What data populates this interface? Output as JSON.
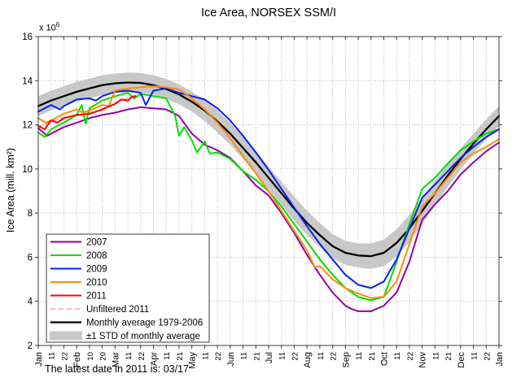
{
  "title": "Ice Area, NORSEX SSM/I",
  "footer_note": "The latest date in 2011 is: 03/17",
  "y_axis": {
    "label": "Ice Area (mill. km²)",
    "exp_base": "x 10",
    "exp_power": "6",
    "min": 2,
    "max": 16,
    "ticks": [
      16,
      14,
      12,
      10,
      8,
      6,
      4,
      2
    ]
  },
  "x_axis": {
    "tick_labels": [
      "Jan",
      "11",
      "22",
      "Feb",
      "10",
      "20",
      "Mar",
      "11",
      "22",
      "Apr",
      "11",
      "21",
      "May",
      "11",
      "22",
      "Jun",
      "11",
      "21",
      "Jul",
      "11",
      "22",
      "Aug",
      "11",
      "22",
      "Sep",
      "11",
      "21",
      "Oct",
      "11",
      "22",
      "Nov",
      "11",
      "21",
      "Dec",
      "11",
      "22",
      "Jan"
    ]
  },
  "legend": {
    "position": "bottom-left",
    "entries": [
      {
        "label": "2007",
        "ref": "2007"
      },
      {
        "label": "2008",
        "ref": "2008"
      },
      {
        "label": "2009",
        "ref": "2009"
      },
      {
        "label": "2010",
        "ref": "2010"
      },
      {
        "label": "2011",
        "ref": "2011"
      },
      {
        "label": "Unfiltered 2011",
        "ref": "Unfiltered 2011"
      },
      {
        "label": "Monthly average 1979-2006",
        "ref": "Monthly average 1979-2006"
      },
      {
        "label": "±1 STD of monthly average",
        "ref": "band"
      }
    ]
  },
  "chart_data": {
    "type": "line",
    "title": "Ice Area, NORSEX SSM/I",
    "xlabel": "",
    "ylabel": "Ice Area (mill. km²)",
    "ylim": [
      2,
      16
    ],
    "grid": true,
    "x_units": "tick index, 3 ticks per month, 0 = Jan 1, 36 = next Jan 1",
    "x_tick_labels": [
      "Jan",
      "11",
      "22",
      "Feb",
      "10",
      "20",
      "Mar",
      "11",
      "22",
      "Apr",
      "11",
      "21",
      "May",
      "11",
      "22",
      "Jun",
      "11",
      "21",
      "Jul",
      "11",
      "22",
      "Aug",
      "11",
      "22",
      "Sep",
      "11",
      "21",
      "Oct",
      "11",
      "22",
      "Nov",
      "11",
      "21",
      "Dec",
      "11",
      "22",
      "Jan"
    ],
    "band": {
      "label": "±1 STD of monthly average",
      "color": "#c8c8c8",
      "center_series": "Monthly average 1979-2006",
      "std": [
        0.45,
        0.45,
        0.45,
        0.45,
        0.45,
        0.45,
        0.45,
        0.45,
        0.45,
        0.45,
        0.45,
        0.45,
        0.45,
        0.48,
        0.5,
        0.5,
        0.5,
        0.5,
        0.5,
        0.52,
        0.55,
        0.55,
        0.55,
        0.55,
        0.55,
        0.55,
        0.58,
        0.6,
        0.62,
        0.62,
        0.6,
        0.55,
        0.5,
        0.48,
        0.45,
        0.45,
        0.45
      ]
    },
    "series": [
      {
        "label": "Monthly average 1979-2006",
        "color": "#000000",
        "width": 2.3,
        "y": [
          12.85,
          13.1,
          13.3,
          13.5,
          13.65,
          13.8,
          13.88,
          13.92,
          13.9,
          13.8,
          13.62,
          13.38,
          13.05,
          12.65,
          12.15,
          11.6,
          10.95,
          10.3,
          9.6,
          8.9,
          8.2,
          7.55,
          7.0,
          6.5,
          6.2,
          6.08,
          6.05,
          6.2,
          6.65,
          7.3,
          8.1,
          8.9,
          9.7,
          10.45,
          11.15,
          11.8,
          12.4
        ]
      },
      {
        "label": "Unfiltered 2011",
        "color": "#ff9e9e",
        "width": 1.4,
        "dash": "6 4",
        "x": [
          0,
          1,
          2,
          3,
          4,
          5,
          6,
          7,
          7.6
        ],
        "y": [
          11.9,
          12.15,
          12.35,
          12.4,
          12.55,
          12.65,
          13.0,
          13.2,
          13.35
        ]
      },
      {
        "label": "2007",
        "color": "#9400a6",
        "width": 2,
        "x": [
          0,
          0.7,
          1,
          2,
          3,
          4,
          5,
          6,
          7,
          8,
          9,
          10,
          11,
          12,
          13,
          14,
          15,
          16,
          17,
          18,
          19,
          20,
          21,
          22,
          23,
          24,
          24.5,
          25,
          26,
          27,
          28,
          29,
          30,
          31,
          32,
          33,
          34,
          35,
          36
        ],
        "y": [
          11.85,
          11.5,
          11.6,
          11.9,
          12.1,
          12.3,
          12.45,
          12.55,
          12.7,
          12.8,
          12.75,
          12.7,
          12.4,
          11.6,
          11.1,
          10.85,
          10.5,
          9.9,
          9.25,
          8.8,
          8.0,
          7.1,
          6.1,
          5.2,
          4.4,
          3.8,
          3.65,
          3.55,
          3.55,
          3.8,
          4.4,
          5.8,
          7.7,
          8.4,
          9.0,
          9.75,
          10.3,
          10.8,
          11.2
        ]
      },
      {
        "label": "2008",
        "color": "#00dd00",
        "width": 2,
        "x": [
          0,
          0.5,
          1,
          2,
          3,
          3.4,
          3.7,
          4,
          5,
          6,
          7,
          7.5,
          8,
          9,
          10,
          10.7,
          11,
          11.4,
          12,
          12.4,
          13,
          13.4,
          14,
          15,
          16,
          17,
          18,
          19,
          20,
          21,
          22,
          23,
          24,
          25,
          26,
          27,
          28,
          29,
          30,
          31,
          32,
          33,
          34,
          35,
          36
        ],
        "y": [
          11.65,
          11.45,
          11.8,
          12.1,
          12.45,
          12.9,
          12.05,
          12.75,
          13.1,
          13.3,
          13.45,
          13.2,
          13.4,
          13.3,
          13.2,
          12.4,
          11.5,
          11.9,
          11.3,
          10.75,
          11.25,
          10.7,
          10.75,
          10.45,
          9.9,
          9.5,
          9.0,
          8.3,
          7.5,
          6.7,
          5.9,
          5.2,
          4.6,
          4.2,
          4.05,
          4.2,
          5.8,
          7.5,
          9.1,
          9.6,
          10.25,
          10.85,
          11.25,
          11.6,
          11.8
        ]
      },
      {
        "label": "2009",
        "color": "#0022ee",
        "width": 2,
        "x": [
          0,
          0.5,
          1,
          1.7,
          2,
          3,
          4,
          4.5,
          5,
          6,
          7,
          8,
          8.4,
          9,
          10,
          11,
          12,
          13,
          14,
          15,
          16,
          17,
          18,
          19,
          20,
          21,
          22,
          23,
          24,
          25,
          26,
          27,
          28,
          29,
          30,
          31,
          32,
          33,
          34,
          35,
          36
        ],
        "y": [
          12.6,
          12.75,
          12.9,
          12.7,
          12.85,
          13.15,
          13.2,
          13.1,
          13.3,
          13.5,
          13.55,
          13.45,
          12.9,
          13.55,
          13.65,
          13.45,
          13.3,
          13.15,
          12.75,
          12.2,
          11.5,
          10.75,
          9.95,
          9.1,
          8.25,
          7.4,
          6.6,
          5.9,
          5.2,
          4.75,
          4.6,
          4.9,
          5.9,
          7.3,
          8.7,
          9.3,
          9.9,
          10.5,
          11.0,
          11.45,
          11.8
        ]
      },
      {
        "label": "2010",
        "color": "#ff8c00",
        "width": 2,
        "x": [
          0,
          0.6,
          1,
          2,
          3,
          3.5,
          4,
          5,
          5.5,
          6,
          7,
          8,
          9,
          10,
          11,
          12,
          13,
          14,
          15,
          16,
          17,
          18,
          19,
          20,
          21,
          21.6,
          22,
          23,
          24,
          25,
          26,
          27,
          28,
          29,
          30,
          31,
          32,
          33,
          34,
          35,
          36
        ],
        "y": [
          12.3,
          12.1,
          12.2,
          12.5,
          12.7,
          12.55,
          12.65,
          12.9,
          12.85,
          13.55,
          13.65,
          13.7,
          13.75,
          13.7,
          13.6,
          13.2,
          12.7,
          12.1,
          11.4,
          10.6,
          9.8,
          9.0,
          8.1,
          7.2,
          6.3,
          5.55,
          5.6,
          5.0,
          4.6,
          4.35,
          4.15,
          4.2,
          4.9,
          6.6,
          8.3,
          8.9,
          9.6,
          10.3,
          10.7,
          11.0,
          11.35
        ]
      },
      {
        "label": "2011",
        "color": "#ff0000",
        "width": 2.1,
        "x": [
          0,
          0.5,
          1,
          1.5,
          2,
          3,
          4,
          5,
          6,
          6.5,
          7,
          7.3,
          7.6
        ],
        "y": [
          11.95,
          11.8,
          12.2,
          12.1,
          12.3,
          12.45,
          12.5,
          12.7,
          12.95,
          13.15,
          13.1,
          13.25,
          13.3
        ]
      }
    ]
  }
}
